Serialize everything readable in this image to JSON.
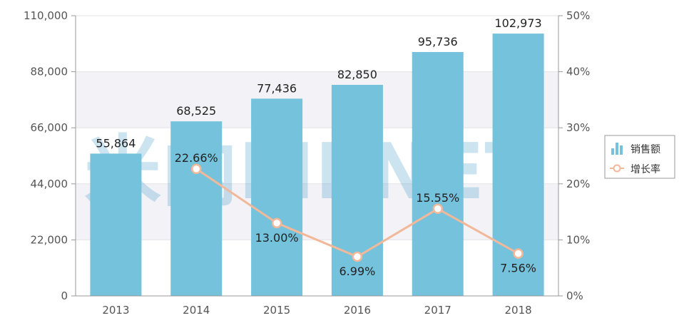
{
  "chart_data": {
    "type": "bar",
    "categories": [
      "2013",
      "2014",
      "2015",
      "2016",
      "2017",
      "2018"
    ],
    "series": [
      {
        "name": "销售额",
        "type": "bar",
        "axis": "left",
        "values": [
          55864,
          68525,
          77436,
          82850,
          95736,
          102973
        ],
        "labels": [
          "55,864",
          "68,525",
          "77,436",
          "82,850",
          "95,736",
          "102,973"
        ],
        "color": "#74c2db"
      },
      {
        "name": "增长率",
        "type": "line",
        "axis": "right",
        "x": [
          "2014",
          "2015",
          "2016",
          "2017",
          "2018"
        ],
        "values": [
          22.66,
          13.0,
          6.99,
          15.55,
          7.56
        ],
        "labels": [
          "22.66%",
          "13.00%",
          "6.99%",
          "15.55%",
          "7.56%"
        ],
        "color": "#f2b89a"
      }
    ],
    "y_left": {
      "ylim": [
        0,
        110000
      ],
      "ticks": [
        "0",
        "22,000",
        "44,000",
        "66,000",
        "88,000",
        "110,000"
      ]
    },
    "y_right": {
      "ylim": [
        0,
        50
      ],
      "ticks": [
        "0%",
        "10%",
        "20%",
        "30%",
        "40%",
        "50%"
      ]
    },
    "grid": true,
    "legend": "right",
    "watermark": "米内MENET"
  }
}
